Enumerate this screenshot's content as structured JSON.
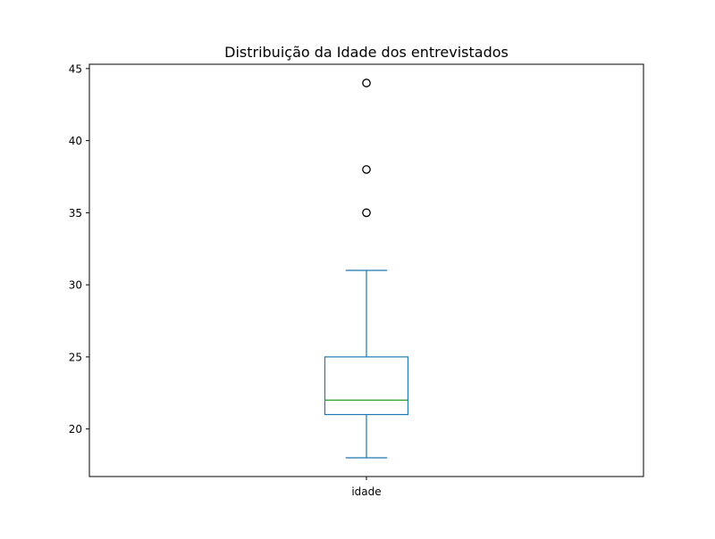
{
  "chart_data": {
    "type": "box",
    "title": "Distribuição da Idade dos entrevistados",
    "xlabel": "",
    "ylabel": "",
    "categories": [
      "idade"
    ],
    "yticks": [
      20,
      25,
      30,
      35,
      40,
      45
    ],
    "ylim": [
      16.7,
      45.3
    ],
    "grid": false,
    "boxes": [
      {
        "category": "idade",
        "whisker_low": 18,
        "q1": 21,
        "median": 22,
        "q3": 25,
        "whisker_high": 31,
        "outliers": [
          35,
          38,
          44
        ]
      }
    ],
    "colors": {
      "box": "#1f77b4",
      "median": "#2ca02c",
      "outlier": "#000000",
      "axes": "#000000"
    }
  }
}
